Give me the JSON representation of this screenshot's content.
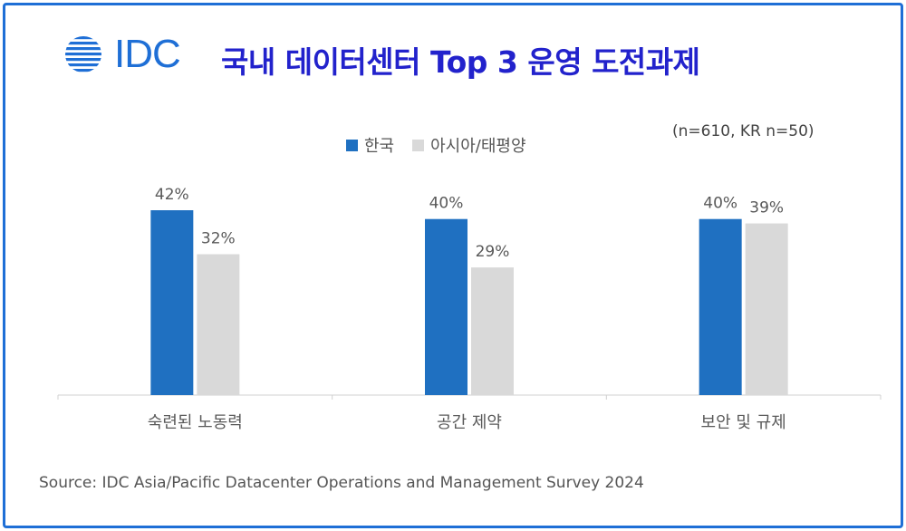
{
  "logo": {
    "text": "IDC"
  },
  "title": "국내 데이터센터 Top 3 운영 도전과제",
  "sample_note": "(n=610, KR n=50)",
  "source": "Source: IDC Asia/Pacific Datacenter Operations and Management Survey 2024",
  "colors": {
    "korea": "#1f70c1",
    "apac": "#d9d9d9",
    "title": "#2222cc",
    "frame": "#1f6fd6"
  },
  "chart_data": {
    "type": "bar",
    "title": "국내 데이터센터 Top 3 운영 도전과제",
    "categories": [
      "숙련된 노동력",
      "공간 제약",
      "보안 및 규제"
    ],
    "series": [
      {
        "name": "한국",
        "values": [
          42,
          40,
          40
        ],
        "labels": [
          "42%",
          "40%",
          "40%"
        ],
        "color": "#1f70c1"
      },
      {
        "name": "아시아/태평양",
        "values": [
          32,
          29,
          39
        ],
        "labels": [
          "32%",
          "29%",
          "39%"
        ],
        "color": "#d9d9d9"
      }
    ],
    "ylim": [
      0,
      42
    ],
    "unit": "%",
    "grid": false,
    "legend_position": "top"
  }
}
